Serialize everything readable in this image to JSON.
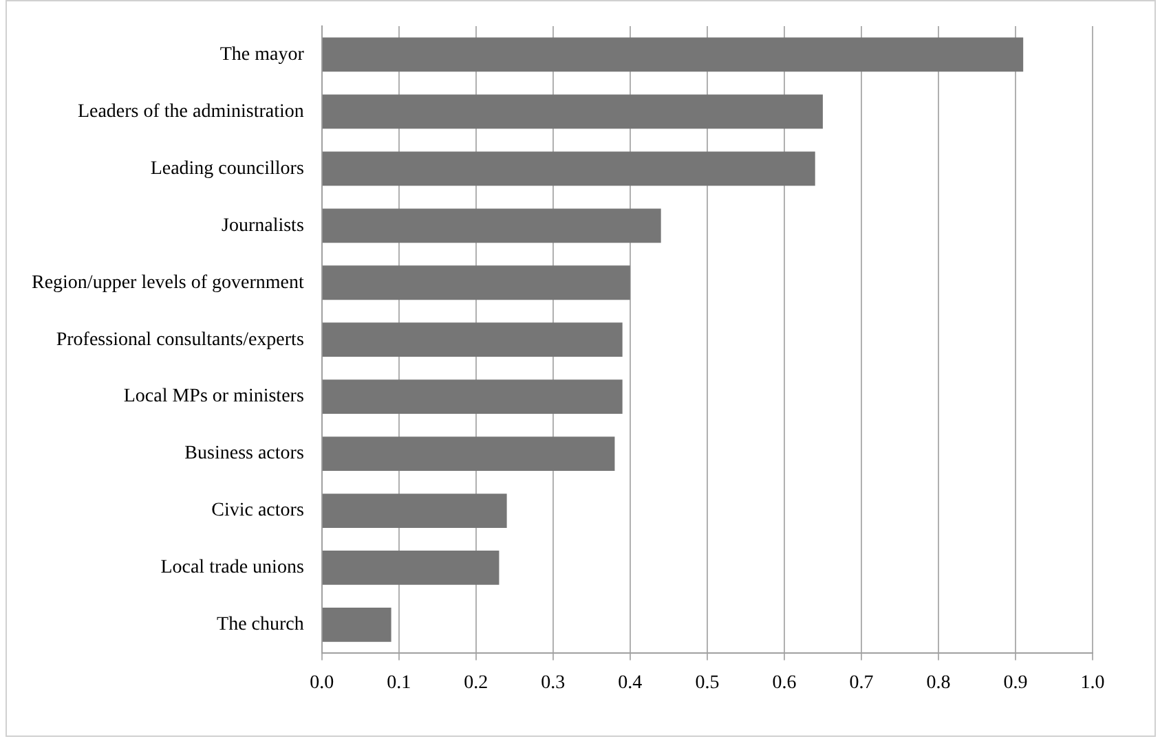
{
  "chart_data": {
    "type": "bar",
    "orientation": "horizontal",
    "categories": [
      "The mayor",
      "Leaders of the administration",
      "Leading councillors",
      "Journalists",
      "Region/upper levels of government",
      "Professional consultants/experts",
      "Local MPs or ministers",
      "Business actors",
      "Civic actors",
      "Local trade unions",
      "The church"
    ],
    "values": [
      0.91,
      0.65,
      0.64,
      0.44,
      0.4,
      0.39,
      0.39,
      0.38,
      0.24,
      0.23,
      0.09
    ],
    "color": "#767676",
    "xlim": [
      0,
      1
    ],
    "xticks": [
      {
        "value": 0,
        "label": "0.0"
      },
      {
        "value": 0.1,
        "label": "0.1"
      },
      {
        "value": 0.2,
        "label": "0.2"
      },
      {
        "value": 0.3,
        "label": "0.3"
      },
      {
        "value": 0.4,
        "label": "0.4"
      },
      {
        "value": 0.5,
        "label": "0.5"
      },
      {
        "value": 0.6,
        "label": "0.6"
      },
      {
        "value": 0.7,
        "label": "0.7"
      },
      {
        "value": 0.8,
        "label": "0.8"
      },
      {
        "value": 0.9,
        "label": "0.9"
      },
      {
        "value": 1,
        "label": "1.0"
      }
    ],
    "grid": "x"
  }
}
